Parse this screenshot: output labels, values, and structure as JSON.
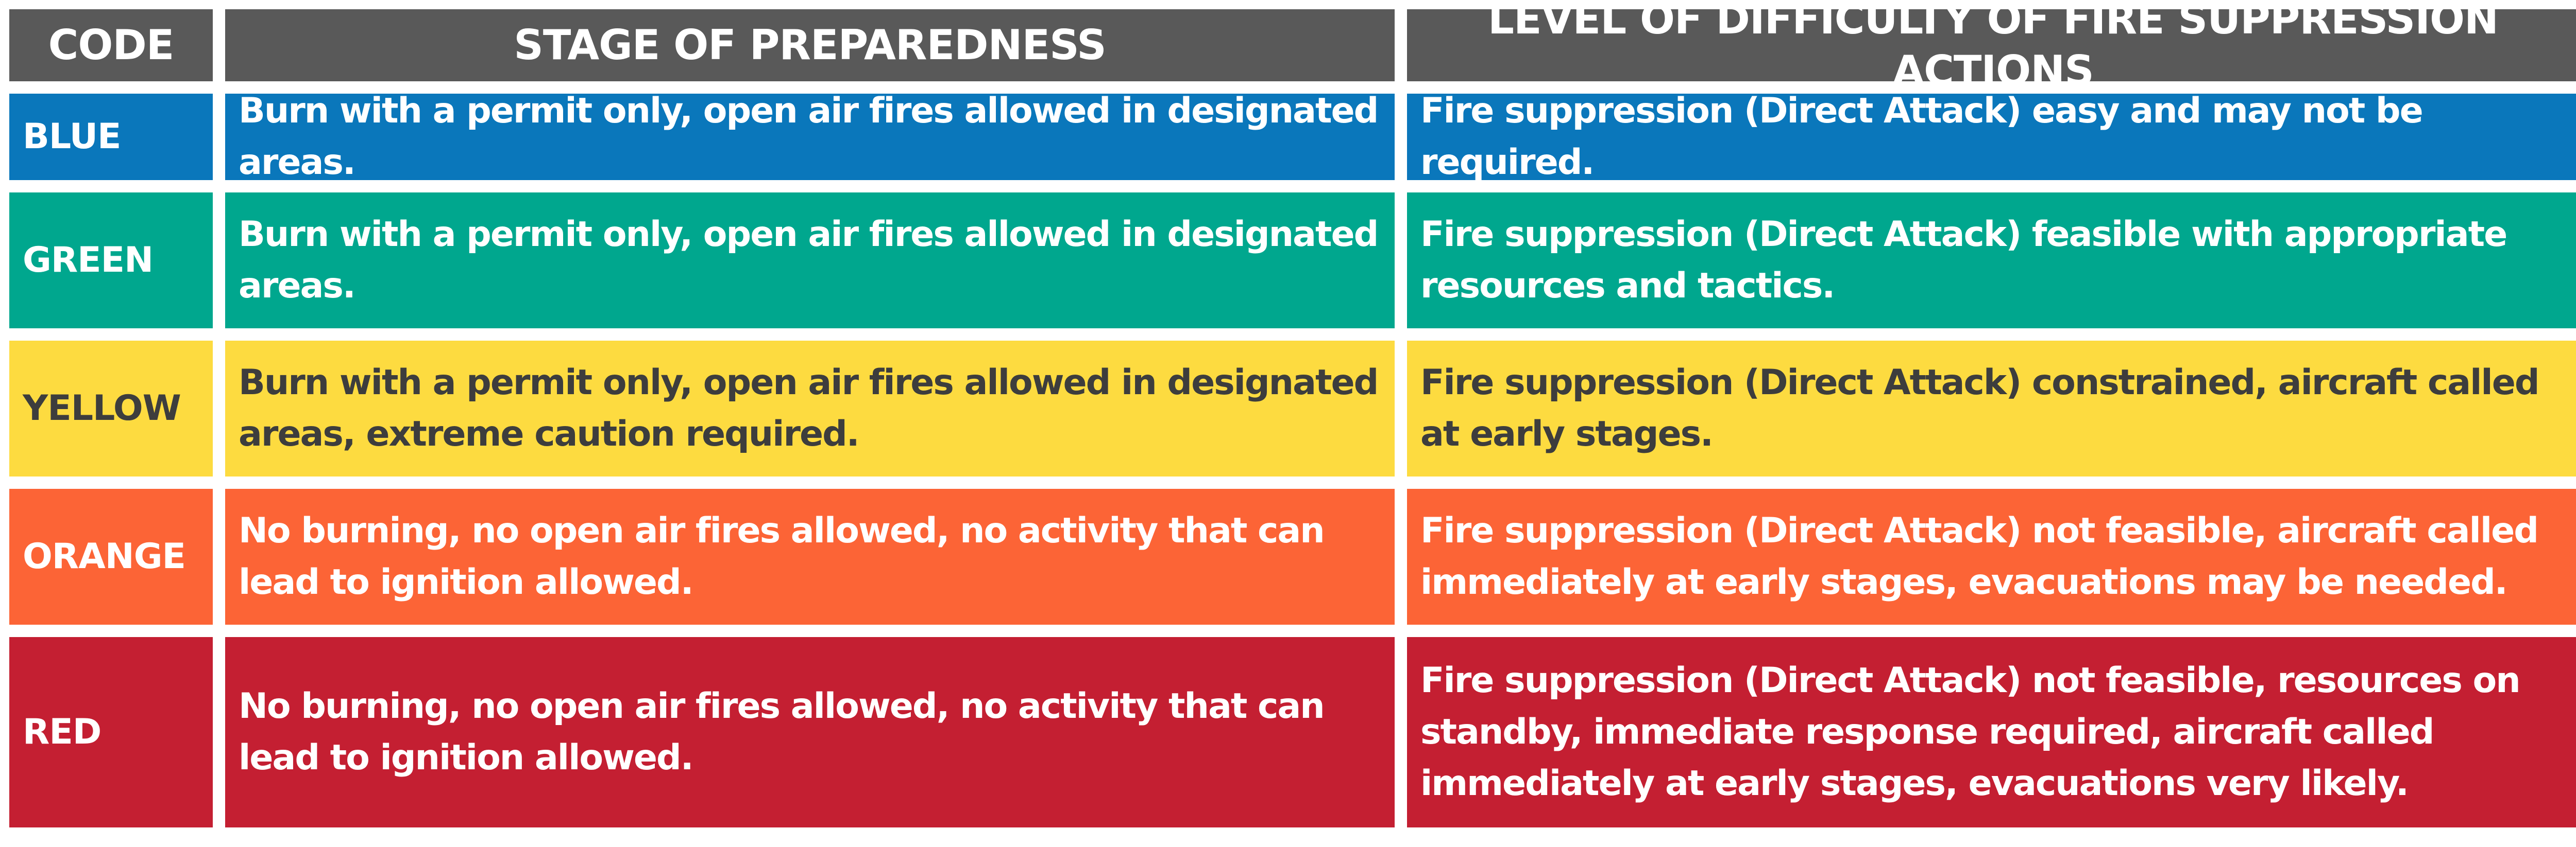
{
  "headers": {
    "code": "CODE",
    "stage": "STAGE OF PREPAREDNESS",
    "difficulty": "LEVEL OF DIFFICULTY OF FIRE SUPPRESSION ACTIONS"
  },
  "header_color": "#595959",
  "rows": [
    {
      "code": "BLUE",
      "color": "#0a77bb",
      "text_color": "#ffffff",
      "stage": "Burn with a permit only, open air fires allowed in designated areas.",
      "difficulty": "Fire suppression (Direct Attack) easy and may not be required."
    },
    {
      "code": "GREEN",
      "color": "#00a78e",
      "text_color": "#ffffff",
      "stage": "Burn with a permit only, open air fires allowed in designated areas.",
      "difficulty": "Fire suppression (Direct Attack) feasible with appropriate resources and tactics."
    },
    {
      "code": "YELLOW",
      "color": "#fddb40",
      "text_color": "#3d3d3d",
      "stage": "Burn with a permit only, open air fires allowed in designated areas, extreme caution required.",
      "difficulty": "Fire suppression (Direct Attack) constrained, aircraft called at early stages."
    },
    {
      "code": "ORANGE",
      "color": "#fc6436",
      "text_color": "#ffffff",
      "stage": "No burning, no open air fires allowed, no activity that can lead to ignition allowed.",
      "difficulty": "Fire suppression (Direct Attack) not feasible, aircraft called immediately at early stages, evacuations may be needed."
    },
    {
      "code": "RED",
      "color": "#c41f32",
      "text_color": "#ffffff",
      "stage": "No burning, no open air fires allowed, no activity that can lead to ignition allowed.",
      "difficulty": "Fire suppression (Direct Attack) not feasible, resources on standby, immediate response required, aircraft called immediately at early stages, evacuations very likely."
    }
  ]
}
